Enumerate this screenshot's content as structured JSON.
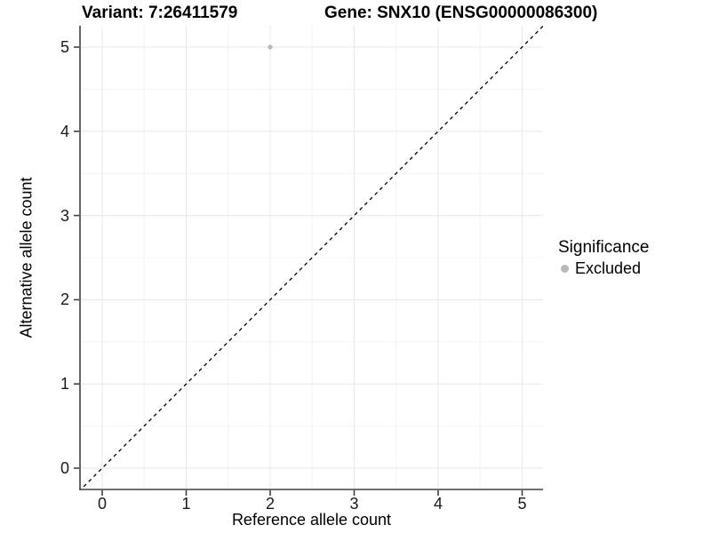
{
  "title": {
    "variant": "Variant: 7:26411579",
    "gene": "Gene: SNX10 (ENSG00000086300)"
  },
  "chart_data": {
    "type": "scatter",
    "title_left": "Variant: 7:26411579",
    "title_right": "Gene: SNX10 (ENSG00000086300)",
    "xlabel": "Reference allele count",
    "ylabel": "Alternative allele count",
    "xlim": [
      -0.25,
      5.25
    ],
    "ylim": [
      -0.25,
      5.25
    ],
    "xticks": [
      0,
      1,
      2,
      3,
      4,
      5
    ],
    "yticks": [
      0,
      1,
      2,
      3,
      4,
      5
    ],
    "xticks_minor": [
      0.5,
      1.5,
      2.5,
      3.5,
      4.5
    ],
    "yticks_minor": [
      0.5,
      1.5,
      2.5,
      3.5,
      4.5
    ],
    "grid": true,
    "series": [
      {
        "name": "Excluded",
        "points": [
          {
            "x": 2,
            "y": 5
          }
        ]
      }
    ],
    "reference_line": {
      "type": "identity",
      "equation": "y = x",
      "style": "dashed",
      "color": "#000000"
    },
    "legend": {
      "title": "Significance",
      "position": "right",
      "items": [
        {
          "label": "Excluded",
          "color": "#b9b9b9"
        }
      ]
    },
    "colors": {
      "point": "#b9b9b9",
      "grid_major": "#e8e8e8",
      "grid_minor": "#f4f4f4",
      "axis": "#404040",
      "background": "#ffffff"
    }
  }
}
